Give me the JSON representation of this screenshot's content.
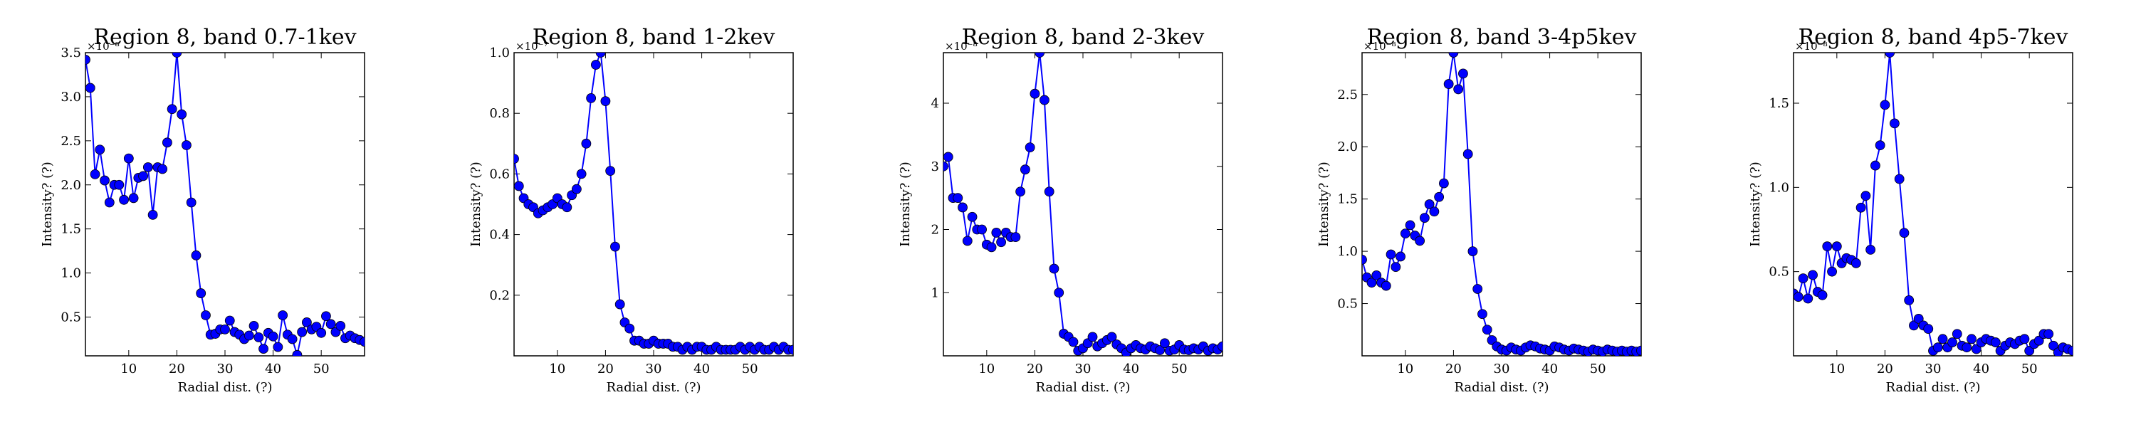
{
  "chart_data": [
    {
      "type": "line",
      "title": "Region 8, band 0.7-1kev",
      "xlabel": "Radial dist. (?)",
      "ylabel": "Intensity? (?)",
      "y_exponent_label": "×10⁻⁸",
      "xlim": [
        1,
        59
      ],
      "ylim": [
        0.06,
        3.5
      ],
      "xticks": [
        10,
        20,
        30,
        40,
        50
      ],
      "yticks": [
        0.5,
        1.0,
        1.5,
        2.0,
        2.5,
        3.0,
        3.5
      ],
      "ytick_labels": [
        "0.5",
        "1.0",
        "1.5",
        "2.0",
        "2.5",
        "3.0",
        "3.5"
      ],
      "grid": false,
      "series": [
        {
          "color": "#0000ff",
          "x": [
            1,
            2,
            3,
            4,
            5,
            6,
            7,
            8,
            9,
            10,
            11,
            12,
            13,
            14,
            15,
            16,
            17,
            18,
            19,
            20,
            21,
            22,
            23,
            24,
            25,
            26,
            27,
            28,
            29,
            30,
            31,
            32,
            33,
            34,
            35,
            36,
            37,
            38,
            39,
            40,
            41,
            42,
            43,
            44,
            45,
            46,
            47,
            48,
            49,
            50,
            51,
            52,
            53,
            54,
            55,
            56,
            57,
            58,
            59
          ],
          "y": [
            3.42,
            3.1,
            2.12,
            2.4,
            2.05,
            1.8,
            2.0,
            2.0,
            1.83,
            2.3,
            1.85,
            2.08,
            2.1,
            2.2,
            1.66,
            2.2,
            2.18,
            2.48,
            2.86,
            3.5,
            2.8,
            2.45,
            1.8,
            1.2,
            0.77,
            0.52,
            0.3,
            0.31,
            0.36,
            0.36,
            0.46,
            0.33,
            0.3,
            0.25,
            0.29,
            0.4,
            0.27,
            0.14,
            0.32,
            0.28,
            0.16,
            0.52,
            0.3,
            0.25,
            0.07,
            0.33,
            0.44,
            0.36,
            0.39,
            0.32,
            0.51,
            0.42,
            0.33,
            0.4,
            0.26,
            0.29,
            0.26,
            0.24,
            0.22
          ]
        }
      ]
    },
    {
      "type": "line",
      "title": "Region 8, band 1-2kev",
      "xlabel": "Radial dist. (?)",
      "ylabel": "Intensity? (?)",
      "y_exponent_label": "×10⁻⁷",
      "xlim": [
        1,
        59
      ],
      "ylim": [
        0.0,
        1.0
      ],
      "xticks": [
        10,
        20,
        30,
        40,
        50
      ],
      "yticks": [
        0.2,
        0.4,
        0.6,
        0.8,
        1.0
      ],
      "ytick_labels": [
        "0.2",
        "0.4",
        "0.6",
        "0.8",
        "1.0"
      ],
      "grid": false,
      "series": [
        {
          "color": "#0000ff",
          "x": [
            1,
            2,
            3,
            4,
            5,
            6,
            7,
            8,
            9,
            10,
            11,
            12,
            13,
            14,
            15,
            16,
            17,
            18,
            19,
            20,
            21,
            22,
            23,
            24,
            25,
            26,
            27,
            28,
            29,
            30,
            31,
            32,
            33,
            34,
            35,
            36,
            37,
            38,
            39,
            40,
            41,
            42,
            43,
            44,
            45,
            46,
            47,
            48,
            49,
            50,
            51,
            52,
            53,
            54,
            55,
            56,
            57,
            58,
            59
          ],
          "y": [
            0.65,
            0.56,
            0.52,
            0.5,
            0.49,
            0.47,
            0.48,
            0.49,
            0.5,
            0.52,
            0.5,
            0.49,
            0.53,
            0.55,
            0.6,
            0.7,
            0.85,
            0.96,
            1.0,
            0.84,
            0.61,
            0.36,
            0.17,
            0.11,
            0.09,
            0.05,
            0.05,
            0.04,
            0.04,
            0.05,
            0.04,
            0.04,
            0.04,
            0.03,
            0.03,
            0.02,
            0.03,
            0.02,
            0.03,
            0.03,
            0.02,
            0.02,
            0.03,
            0.02,
            0.02,
            0.02,
            0.02,
            0.03,
            0.02,
            0.03,
            0.02,
            0.03,
            0.02,
            0.02,
            0.03,
            0.02,
            0.03,
            0.02,
            0.02
          ]
        }
      ]
    },
    {
      "type": "line",
      "title": "Region 8, band 2-3kev",
      "xlabel": "Radial dist. (?)",
      "ylabel": "Intensity? (?)",
      "y_exponent_label": "×10⁻⁸",
      "xlim": [
        1,
        59
      ],
      "ylim": [
        0.0,
        4.8
      ],
      "xticks": [
        10,
        20,
        30,
        40,
        50
      ],
      "yticks": [
        1,
        2,
        3,
        4
      ],
      "ytick_labels": [
        "1",
        "2",
        "3",
        "4"
      ],
      "grid": false,
      "series": [
        {
          "color": "#0000ff",
          "x": [
            1,
            2,
            3,
            4,
            5,
            6,
            7,
            8,
            9,
            10,
            11,
            12,
            13,
            14,
            15,
            16,
            17,
            18,
            19,
            20,
            21,
            22,
            23,
            24,
            25,
            26,
            27,
            28,
            29,
            30,
            31,
            32,
            33,
            34,
            35,
            36,
            37,
            38,
            39,
            40,
            41,
            42,
            43,
            44,
            45,
            46,
            47,
            48,
            49,
            50,
            51,
            52,
            53,
            54,
            55,
            56,
            57,
            58,
            59
          ],
          "y": [
            3.0,
            3.15,
            2.5,
            2.5,
            2.35,
            1.82,
            2.2,
            2.0,
            2.0,
            1.76,
            1.72,
            1.95,
            1.8,
            1.95,
            1.88,
            1.88,
            2.6,
            2.95,
            3.3,
            4.15,
            4.8,
            4.05,
            2.6,
            1.38,
            1.0,
            0.35,
            0.3,
            0.22,
            0.08,
            0.12,
            0.2,
            0.3,
            0.15,
            0.2,
            0.25,
            0.3,
            0.18,
            0.12,
            0.05,
            0.12,
            0.17,
            0.12,
            0.1,
            0.15,
            0.12,
            0.09,
            0.2,
            0.08,
            0.1,
            0.17,
            0.1,
            0.09,
            0.12,
            0.1,
            0.15,
            0.08,
            0.12,
            0.1,
            0.15
          ]
        }
      ]
    },
    {
      "type": "line",
      "title": "Region 8, band 3-4p5kev",
      "xlabel": "Radial dist. (?)",
      "ylabel": "Intensity? (?)",
      "y_exponent_label": "×10⁻⁸",
      "xlim": [
        1,
        59
      ],
      "ylim": [
        0.0,
        2.9
      ],
      "xticks": [
        10,
        20,
        30,
        40,
        50
      ],
      "yticks": [
        0.5,
        1.0,
        1.5,
        2.0,
        2.5
      ],
      "ytick_labels": [
        "0.5",
        "1.0",
        "1.5",
        "2.0",
        "2.5"
      ],
      "grid": false,
      "series": [
        {
          "color": "#0000ff",
          "x": [
            1,
            2,
            3,
            4,
            5,
            6,
            7,
            8,
            9,
            10,
            11,
            12,
            13,
            14,
            15,
            16,
            17,
            18,
            19,
            20,
            21,
            22,
            23,
            24,
            25,
            26,
            27,
            28,
            29,
            30,
            31,
            32,
            33,
            34,
            35,
            36,
            37,
            38,
            39,
            40,
            41,
            42,
            43,
            44,
            45,
            46,
            47,
            48,
            49,
            50,
            51,
            52,
            53,
            54,
            55,
            56,
            57,
            58,
            59
          ],
          "y": [
            0.92,
            0.75,
            0.7,
            0.77,
            0.7,
            0.67,
            0.97,
            0.85,
            0.95,
            1.17,
            1.25,
            1.15,
            1.1,
            1.32,
            1.45,
            1.38,
            1.52,
            1.65,
            2.6,
            2.9,
            2.55,
            2.7,
            1.93,
            1.0,
            0.64,
            0.4,
            0.25,
            0.15,
            0.09,
            0.06,
            0.05,
            0.08,
            0.06,
            0.05,
            0.08,
            0.1,
            0.09,
            0.07,
            0.06,
            0.05,
            0.09,
            0.08,
            0.06,
            0.05,
            0.07,
            0.06,
            0.05,
            0.04,
            0.06,
            0.05,
            0.04,
            0.06,
            0.05,
            0.04,
            0.05,
            0.04,
            0.05,
            0.04,
            0.05
          ]
        }
      ]
    },
    {
      "type": "line",
      "title": "Region 8, band 4p5-7kev",
      "xlabel": "Radial dist. (?)",
      "ylabel": "Intensity? (?)",
      "y_exponent_label": "×10⁻⁸",
      "xlim": [
        1,
        59
      ],
      "ylim": [
        0.0,
        1.8
      ],
      "xticks": [
        10,
        20,
        30,
        40,
        50
      ],
      "yticks": [
        0.5,
        1.0,
        1.5
      ],
      "ytick_labels": [
        "0.5",
        "1.0",
        "1.5"
      ],
      "grid": false,
      "series": [
        {
          "color": "#0000ff",
          "x": [
            1,
            2,
            3,
            4,
            5,
            6,
            7,
            8,
            9,
            10,
            11,
            12,
            13,
            14,
            15,
            16,
            17,
            18,
            19,
            20,
            21,
            22,
            23,
            24,
            25,
            26,
            27,
            28,
            29,
            30,
            31,
            32,
            33,
            34,
            35,
            36,
            37,
            38,
            39,
            40,
            41,
            42,
            43,
            44,
            45,
            46,
            47,
            48,
            49,
            50,
            51,
            52,
            53,
            54,
            55,
            56,
            57,
            58,
            59
          ],
          "y": [
            0.37,
            0.35,
            0.46,
            0.34,
            0.48,
            0.38,
            0.36,
            0.65,
            0.5,
            0.65,
            0.55,
            0.58,
            0.57,
            0.55,
            0.88,
            0.95,
            0.63,
            1.13,
            1.25,
            1.49,
            1.8,
            1.38,
            1.05,
            0.73,
            0.33,
            0.18,
            0.22,
            0.18,
            0.16,
            0.03,
            0.05,
            0.1,
            0.05,
            0.08,
            0.13,
            0.06,
            0.05,
            0.1,
            0.04,
            0.08,
            0.1,
            0.09,
            0.08,
            0.03,
            0.06,
            0.08,
            0.07,
            0.09,
            0.1,
            0.03,
            0.07,
            0.09,
            0.13,
            0.13,
            0.06,
            0.02,
            0.05,
            0.04,
            0.03
          ]
        }
      ]
    }
  ]
}
